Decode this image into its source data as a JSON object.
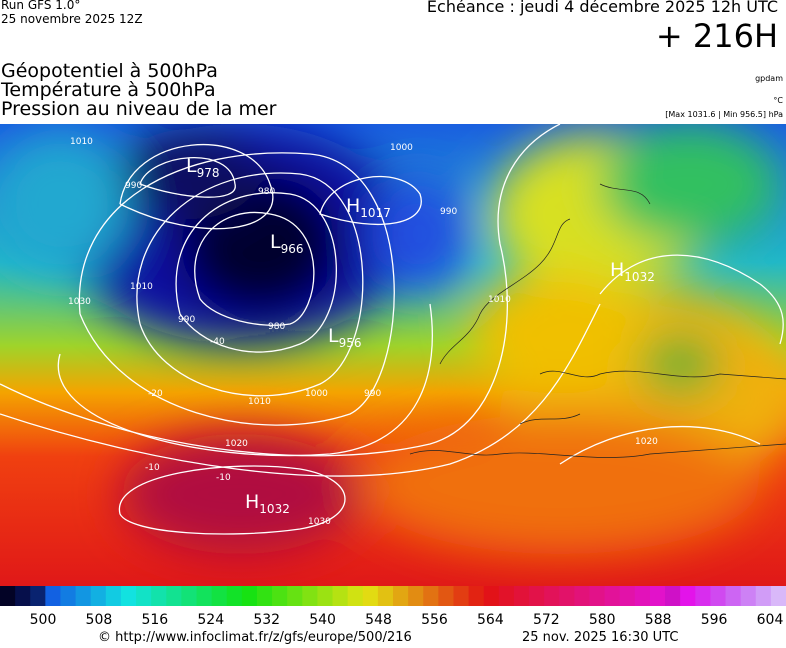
{
  "header": {
    "model": "Run GFS 1.0°",
    "run": "25 novembre 2025 12Z",
    "valid": "Echéance : jeudi 4 décembre 2025 12h UTC",
    "lead": "+ 216H"
  },
  "fields": [
    "Géopotentiel à 500hPa",
    "Température à 500hPa",
    "Pression au niveau de la mer"
  ],
  "units": {
    "geopotential": "gpdam",
    "temperature": "°C",
    "pressure": "[Max 1031.6 | Min 956.5] hPa"
  },
  "centers": [
    {
      "kind": "L",
      "value": "978"
    },
    {
      "kind": "H",
      "value": "1017"
    },
    {
      "kind": "L",
      "value": "966"
    },
    {
      "kind": "H",
      "value": "1032"
    },
    {
      "kind": "L",
      "value": "956"
    },
    {
      "kind": "H",
      "value": "1032"
    }
  ],
  "contour_labels": [
    "1010",
    "990",
    "980",
    "1000",
    "1010",
    "990",
    "980",
    "1000",
    "990",
    "1010",
    "1020",
    "1030",
    "1030",
    "1020",
    "-40",
    "-20",
    "-10",
    "-10",
    "990",
    "1010"
  ],
  "colorbar": {
    "ticks": [
      500,
      508,
      516,
      524,
      532,
      540,
      548,
      556,
      564,
      572,
      580,
      588,
      596,
      604
    ]
  },
  "footer": {
    "url": "© http://www.infoclimat.fr/z/gfs/europe/500/216",
    "timestamp": "25 nov. 2025 16:30 UTC"
  }
}
